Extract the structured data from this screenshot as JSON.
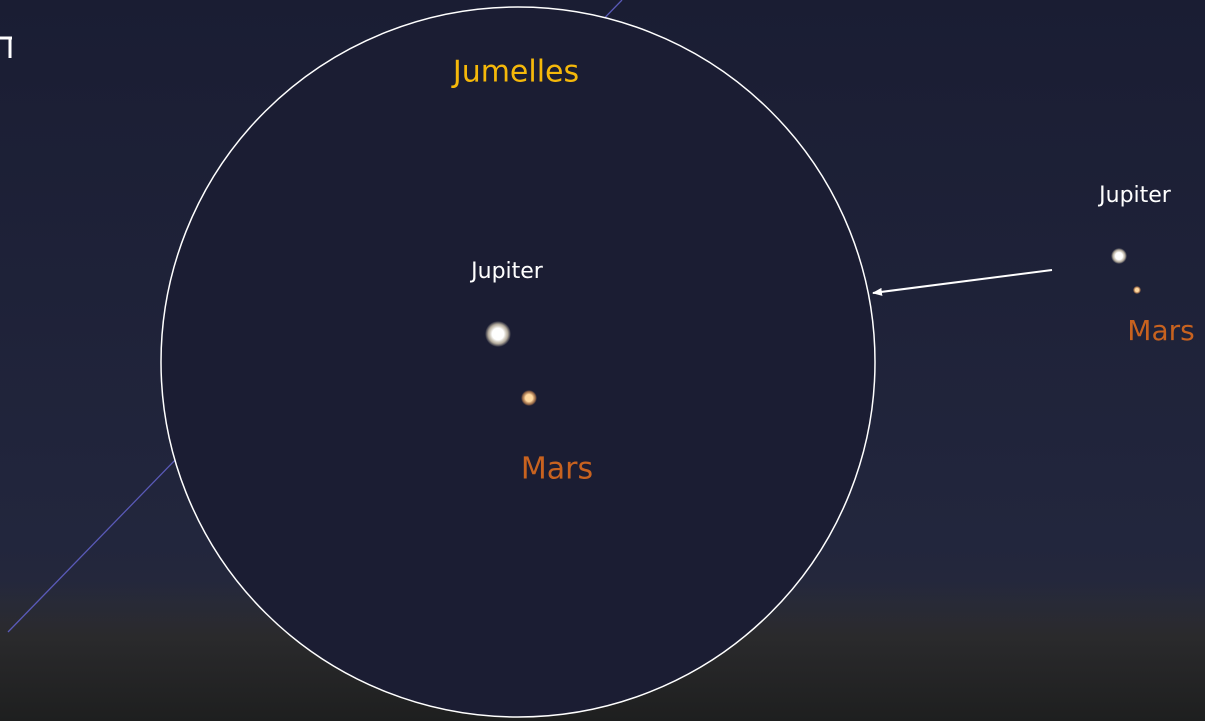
{
  "binocular_view": {
    "title": "Jumelles",
    "jupiter": "Jupiter",
    "mars": "Mars"
  },
  "naked_eye_view": {
    "jupiter": "Jupiter",
    "mars": "Mars"
  }
}
